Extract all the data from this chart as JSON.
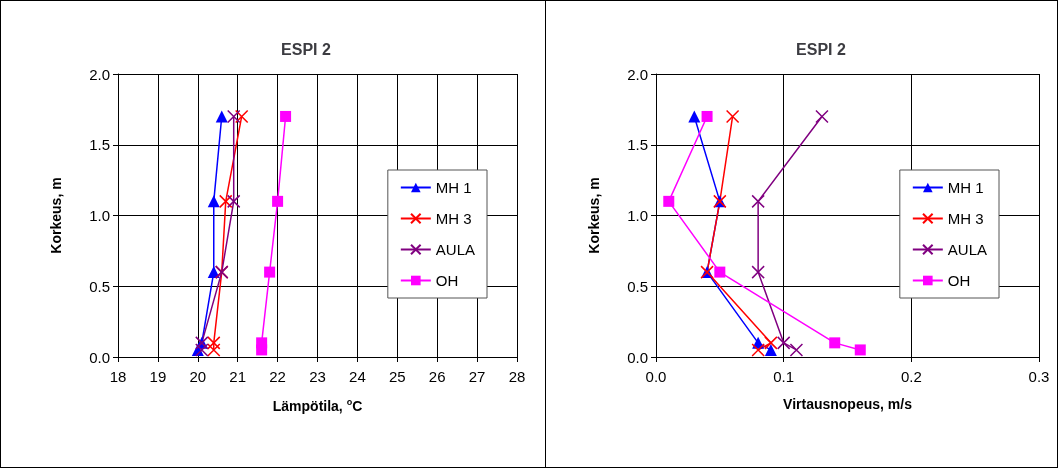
{
  "chart_data": [
    {
      "type": "line",
      "title": "ESPI 2",
      "xlabel": "Lämpötila, $^{o}$C",
      "ylabel": "Korkeus, m",
      "xlim": [
        18,
        28
      ],
      "xticks": [
        18,
        19,
        20,
        21,
        22,
        23,
        24,
        25,
        26,
        27,
        28
      ],
      "ylim": [
        0,
        2
      ],
      "yticks": [
        {
          "value": 0,
          "label": "0.0"
        },
        {
          "value": 0.5,
          "label": "0.5"
        },
        {
          "value": 1,
          "label": "1.0"
        },
        {
          "value": 1.5,
          "label": "1.5"
        },
        {
          "value": 2,
          "label": "2.0"
        }
      ],
      "grid": true,
      "legend": "right",
      "series": [
        {
          "name": "MH 1",
          "color": "#0000ff",
          "marker": "triangle",
          "x": [
            20.0,
            20.1,
            20.4,
            20.4,
            20.6
          ],
          "values": [
            0.05,
            0.1,
            0.6,
            1.1,
            1.7
          ]
        },
        {
          "name": "MH 3",
          "color": "#ff0000",
          "marker": "cross",
          "x": [
            20.4,
            20.4,
            20.6,
            20.7,
            21.1
          ],
          "values": [
            0.05,
            0.1,
            0.6,
            1.1,
            1.7
          ]
        },
        {
          "name": "AULA",
          "color": "#800080",
          "marker": "cross",
          "x": [
            20.1,
            20.1,
            20.6,
            20.9,
            20.9
          ],
          "values": [
            0.05,
            0.1,
            0.6,
            1.1,
            1.7
          ]
        },
        {
          "name": "OH",
          "color": "#ff00ff",
          "marker": "square",
          "x": [
            21.6,
            21.6,
            21.8,
            22.0,
            22.2
          ],
          "values": [
            0.05,
            0.1,
            0.6,
            1.1,
            1.7
          ]
        }
      ]
    },
    {
      "type": "line",
      "title": "ESPI 2",
      "xlabel": "Virtausnopeus, m/s",
      "ylabel": "Korkeus, m",
      "xlim": [
        0,
        0.3
      ],
      "xticks": [
        {
          "value": 0,
          "label": "0.0"
        },
        {
          "value": 0.1,
          "label": "0.1"
        },
        {
          "value": 0.2,
          "label": "0.2"
        },
        {
          "value": 0.3,
          "label": "0.3"
        }
      ],
      "ylim": [
        0,
        2
      ],
      "yticks": [
        {
          "value": 0,
          "label": "0.0"
        },
        {
          "value": 0.5,
          "label": "0.5"
        },
        {
          "value": 1,
          "label": "1.0"
        },
        {
          "value": 1.5,
          "label": "1.5"
        },
        {
          "value": 2,
          "label": "2.0"
        }
      ],
      "grid": true,
      "legend": "right",
      "series": [
        {
          "name": "MH 1",
          "color": "#0000ff",
          "marker": "triangle",
          "x": [
            0.09,
            0.08,
            0.04,
            0.05,
            0.03
          ],
          "values": [
            0.05,
            0.1,
            0.6,
            1.1,
            1.7
          ]
        },
        {
          "name": "MH 3",
          "color": "#ff0000",
          "marker": "cross",
          "x": [
            0.08,
            0.09,
            0.04,
            0.05,
            0.06
          ],
          "values": [
            0.05,
            0.1,
            0.6,
            1.1,
            1.7
          ]
        },
        {
          "name": "AULA",
          "color": "#800080",
          "marker": "cross",
          "x": [
            0.11,
            0.1,
            0.08,
            0.08,
            0.13
          ],
          "values": [
            0.05,
            0.1,
            0.6,
            1.1,
            1.7
          ]
        },
        {
          "name": "OH",
          "color": "#ff00ff",
          "marker": "square",
          "x": [
            0.16,
            0.14,
            0.05,
            0.01,
            0.04
          ],
          "values": [
            0.05,
            0.1,
            0.6,
            1.1,
            1.7
          ]
        }
      ]
    }
  ]
}
